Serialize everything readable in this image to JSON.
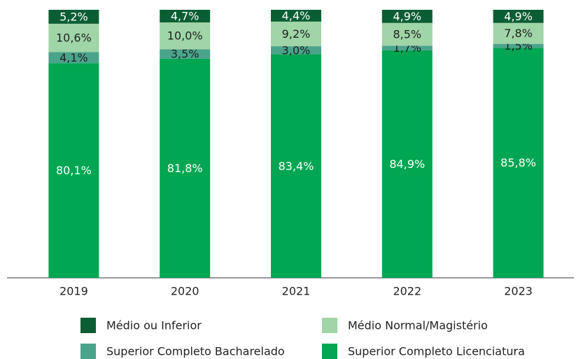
{
  "chart_data": {
    "type": "stacked_bar",
    "categories": [
      "2019",
      "2020",
      "2021",
      "2022",
      "2023"
    ],
    "ylim": [
      0,
      100
    ],
    "series": [
      {
        "name": "Médio ou Inferior",
        "color": "#0b5e34",
        "label_color": "#ffffff",
        "values": [
          5.2,
          4.7,
          4.4,
          4.9,
          4.9
        ],
        "value_labels": [
          "5,2%",
          "4,7%",
          "4,4%",
          "4,9%",
          "4,9%"
        ]
      },
      {
        "name": "Médio Normal/Magistério",
        "color": "#9fd5a7",
        "label_color": "#222222",
        "values": [
          10.6,
          10.0,
          9.2,
          8.5,
          7.8
        ],
        "value_labels": [
          "10,6%",
          "10,0%",
          "9,2%",
          "8,5%",
          "7,8%"
        ]
      },
      {
        "name": "Superior Completo Bacharelado",
        "color": "#4aa48c",
        "label_color": "#222222",
        "values": [
          4.1,
          3.5,
          3.0,
          1.7,
          1.5
        ],
        "value_labels": [
          "4,1%",
          "3,5%",
          "3,0%",
          "1,7%",
          "1,5%"
        ]
      },
      {
        "name": "Superior Completo Licenciatura",
        "color": "#00a651",
        "label_color": "#ffffff",
        "values": [
          80.1,
          81.8,
          83.4,
          84.9,
          85.8
        ],
        "value_labels": [
          "80,1%",
          "81,8%",
          "83,4%",
          "84,9%",
          "85,8%"
        ]
      }
    ],
    "legend": "bottom"
  }
}
